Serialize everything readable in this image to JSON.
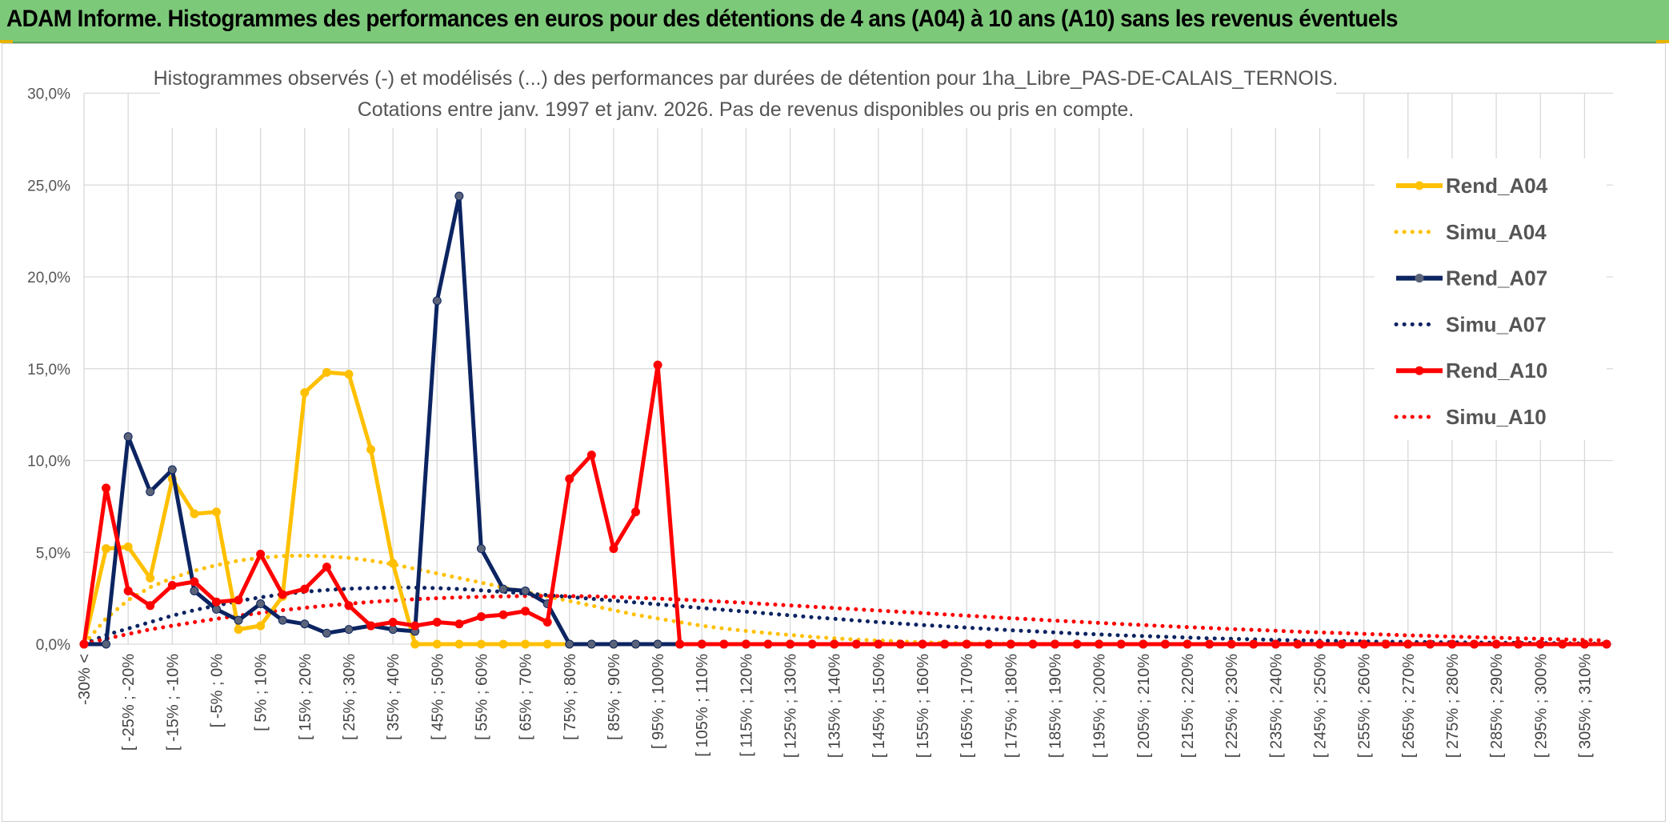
{
  "header": {
    "title": "ADAM Informe. Histogrammes des performances en euros pour des détentions de 4 ans (A04) à 10 ans (A10) sans les revenus éventuels"
  },
  "chart_data": {
    "type": "line",
    "subtitle_lines": [
      "Histogrammes observés (-) et modélisés (...) des performances par durées de détention pour 1ha_Libre_PAS-DE-CALAIS_TERNOIS.",
      "Cotations entre janv. 1997 et janv. 2026. Pas de revenus disponibles ou pris en compte."
    ],
    "ylim": [
      0,
      30
    ],
    "y_ticks": [
      "0,0%",
      "5,0%",
      "10,0%",
      "15,0%",
      "20,0%",
      "25,0%",
      "30,0%"
    ],
    "x_tick_labels": [
      "-30% <",
      "[ -25% ; -20%",
      "[ -15% ; -10%",
      "[ -5% ; 0%",
      "[ 5% ; 10%",
      "[ 15% ; 20%",
      "[ 25% ; 30%",
      "[ 35% ; 40%",
      "[ 45% ; 50%",
      "[ 55% ; 60%",
      "[ 65% ; 70%",
      "[ 75% ; 80%",
      "[ 85% ; 90%",
      "[ 95% ; 100%",
      "[ 105% ; 110%",
      "[ 115% ; 120%",
      "[ 125% ; 130%",
      "[ 135% ; 140%",
      "[ 145% ; 150%",
      "[ 155% ; 160%",
      "[ 165% ; 170%",
      "[ 175% ; 180%",
      "[ 185% ; 190%",
      "[ 195% ; 200%",
      "[ 205% ; 210%",
      "[ 215% ; 220%",
      "[ 225% ; 230%",
      "[ 235% ; 240%",
      "[ 245% ; 250%",
      "[ 255% ; 260%",
      "[ 265% ; 270%",
      "[ 275% ; 280%",
      "[ 285% ; 290%",
      "[ 295% ; 300%",
      "[ 305% ; 310%"
    ],
    "category_count": 70,
    "grid": true,
    "legend_position": "right",
    "series": [
      {
        "name": "Rend_A04",
        "style": "solid",
        "color": "#ffc000",
        "values": [
          0,
          5.2,
          5.3,
          3.6,
          9.0,
          7.1,
          7.2,
          0.8,
          1.0,
          2.6,
          13.7,
          14.8,
          14.7,
          10.6,
          4.4,
          0,
          0,
          0,
          0,
          0,
          0,
          0,
          0
        ]
      },
      {
        "name": "Simu_A04",
        "style": "dotted",
        "color": "#ffc000",
        "values": [
          0,
          1.4,
          2.4,
          3.1,
          3.6,
          4.0,
          4.3,
          4.55,
          4.7,
          4.8,
          4.82,
          4.78,
          4.7,
          4.55,
          4.35,
          4.1,
          3.85,
          3.6,
          3.35,
          3.1,
          2.85,
          2.6,
          2.35,
          2.1,
          1.85,
          1.6,
          1.4,
          1.2,
          1.0,
          0.85,
          0.72,
          0.6,
          0.5,
          0.4,
          0.32,
          0.25,
          0.2,
          0.15,
          0.1,
          0.07,
          0.05,
          0.03,
          0.02,
          0.01,
          0.01,
          0,
          0
        ]
      },
      {
        "name": "Rend_A07",
        "style": "solid",
        "color": "#0c2461",
        "values": [
          0,
          0,
          11.3,
          8.3,
          9.5,
          2.9,
          1.9,
          1.3,
          2.2,
          1.3,
          1.1,
          0.6,
          0.8,
          1.0,
          0.8,
          0.7,
          18.7,
          24.4,
          5.2,
          3.0,
          2.9,
          2.2,
          0,
          0,
          0,
          0,
          0
        ]
      },
      {
        "name": "Simu_A07",
        "style": "dotted",
        "color": "#0c2461",
        "values": [
          0,
          0.5,
          0.85,
          1.2,
          1.55,
          1.85,
          2.1,
          2.35,
          2.55,
          2.72,
          2.85,
          2.95,
          3.02,
          3.06,
          3.08,
          3.08,
          3.05,
          3.0,
          2.93,
          2.85,
          2.76,
          2.67,
          2.57,
          2.47,
          2.37,
          2.27,
          2.17,
          2.07,
          1.97,
          1.87,
          1.77,
          1.67,
          1.57,
          1.47,
          1.38,
          1.29,
          1.2,
          1.12,
          1.04,
          0.97,
          0.9,
          0.83,
          0.76,
          0.7,
          0.64,
          0.58,
          0.53,
          0.48,
          0.44,
          0.4,
          0.36,
          0.32,
          0.29,
          0.26,
          0.23,
          0.21,
          0.19,
          0.17,
          0.15,
          0.13,
          0.12,
          0.11,
          0.1,
          0.09,
          0.08,
          0.07,
          0.06,
          0.05,
          0.04,
          0.02
        ]
      },
      {
        "name": "Rend_A10",
        "style": "solid",
        "color": "#ff0000",
        "values": [
          0,
          8.5,
          2.9,
          2.1,
          3.2,
          3.4,
          2.3,
          2.4,
          4.9,
          2.7,
          3.0,
          4.2,
          2.1,
          1.0,
          1.2,
          1.0,
          1.2,
          1.1,
          1.5,
          1.6,
          1.8,
          1.2,
          9.0,
          10.3,
          5.2,
          7.2,
          15.2,
          0,
          0,
          0,
          0,
          0,
          0,
          0,
          0,
          0,
          0,
          0,
          0,
          0,
          0,
          0,
          0,
          0,
          0,
          0,
          0,
          0,
          0,
          0,
          0,
          0,
          0,
          0,
          0,
          0,
          0,
          0,
          0,
          0,
          0,
          0,
          0,
          0,
          0,
          0,
          0,
          0,
          0,
          0
        ]
      },
      {
        "name": "Simu_A10",
        "style": "dotted",
        "color": "#ff0000",
        "values": [
          0,
          0.3,
          0.55,
          0.8,
          1.0,
          1.2,
          1.38,
          1.55,
          1.7,
          1.85,
          1.98,
          2.1,
          2.2,
          2.3,
          2.38,
          2.45,
          2.5,
          2.55,
          2.58,
          2.6,
          2.62,
          2.62,
          2.62,
          2.6,
          2.57,
          2.53,
          2.48,
          2.43,
          2.37,
          2.31,
          2.25,
          2.18,
          2.11,
          2.04,
          1.97,
          1.9,
          1.83,
          1.76,
          1.69,
          1.62,
          1.55,
          1.48,
          1.41,
          1.35,
          1.28,
          1.22,
          1.16,
          1.1,
          1.04,
          0.98,
          0.93,
          0.88,
          0.82,
          0.78,
          0.73,
          0.68,
          0.64,
          0.6,
          0.56,
          0.52,
          0.48,
          0.45,
          0.41,
          0.38,
          0.35,
          0.32,
          0.29,
          0.26,
          0.23,
          0.2
        ]
      }
    ]
  }
}
